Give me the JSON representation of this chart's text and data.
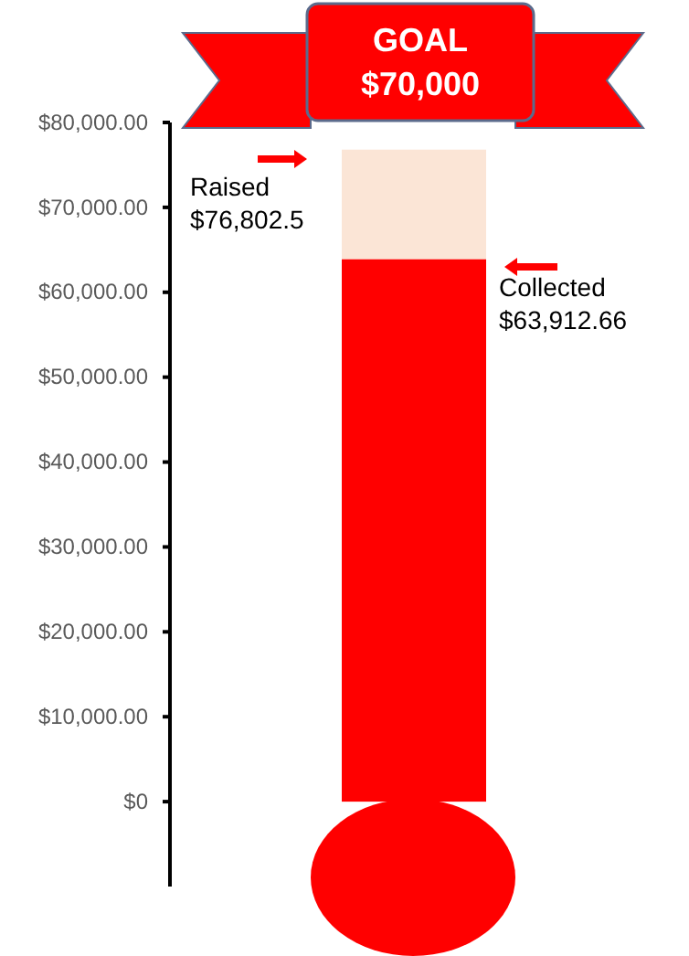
{
  "chart_data": {
    "type": "bar",
    "title": "GOAL\n$70,000",
    "categories": [
      null
    ],
    "series": [
      {
        "color": "#ff0000",
        "values": [
          63912.66
        ]
      },
      {
        "color": "#fbe5d6",
        "values": [
          12889.84
        ]
      }
    ],
    "stacked": true,
    "ylim": [
      -10000,
      80000
    ],
    "yticks": [
      {
        "value": 0,
        "label": "$0"
      },
      {
        "value": 10000,
        "label": "$10,000.00"
      },
      {
        "value": 20000,
        "label": "$20,000.00"
      },
      {
        "value": 30000,
        "label": "$30,000.00"
      },
      {
        "value": 40000,
        "label": "$40,000.00"
      },
      {
        "value": 50000,
        "label": "$50,000.00"
      },
      {
        "value": 60000,
        "label": "$60,000.00"
      },
      {
        "value": 70000,
        "label": "$70,000.00"
      },
      {
        "value": 80000,
        "label": "$80,000.00"
      }
    ],
    "annotations": [
      "Raised\n$76,802.5",
      "Collected\n$63,912.66"
    ]
  }
}
